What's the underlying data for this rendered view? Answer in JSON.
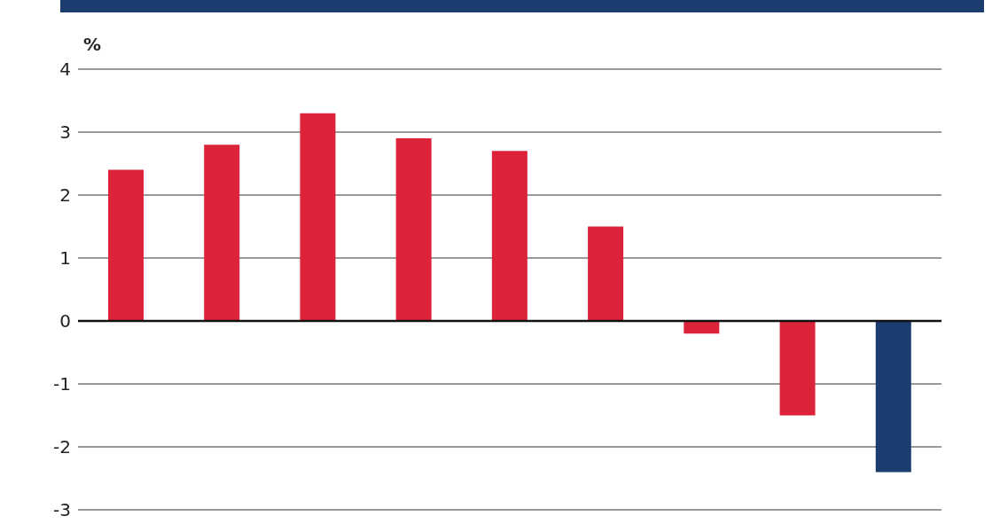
{
  "chart_data": {
    "type": "bar",
    "ylabel": "%",
    "categories": [
      null,
      null,
      null,
      null,
      null,
      null,
      null,
      null,
      null
    ],
    "values": [
      2.4,
      2.8,
      3.3,
      2.9,
      2.7,
      1.5,
      -0.2,
      -1.5,
      -2.4
    ],
    "colors": [
      "#dc2339",
      "#dc2339",
      "#dc2339",
      "#dc2339",
      "#dc2339",
      "#dc2339",
      "#dc2339",
      "#dc2339",
      "#1b3c6e"
    ],
    "ylim": [
      -3,
      4
    ],
    "yticks": [
      -3,
      -2,
      -1,
      0,
      1,
      2,
      3,
      4
    ],
    "grid": "y"
  }
}
